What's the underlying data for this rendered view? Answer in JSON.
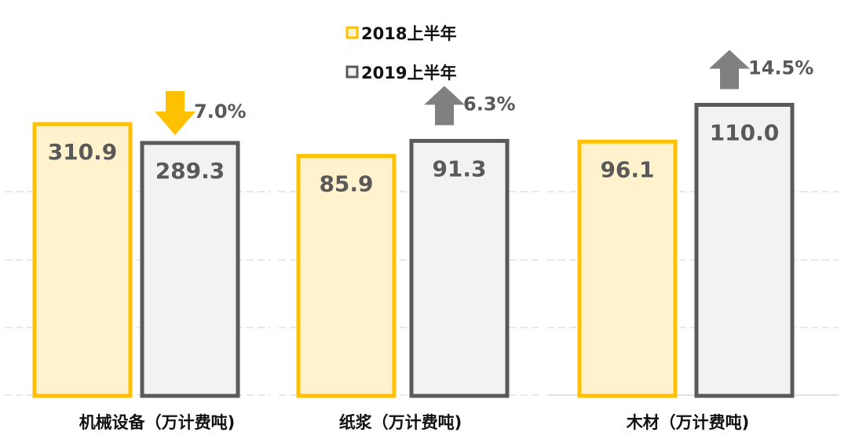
{
  "chart_data": {
    "type": "bar",
    "title": "",
    "legend_position": "top-center",
    "grid": true,
    "series": [
      {
        "name": "2018上半年",
        "color": "#FFC000",
        "fill": "#FFF2CC"
      },
      {
        "name": "2019上半年",
        "color": "#595959",
        "fill": "#F2F2F2"
      }
    ],
    "panels": [
      {
        "category": "机械设备（万计费吨)",
        "values": [
          310.9,
          289.3
        ],
        "labels": [
          "310.9",
          "289.3"
        ],
        "change": "7.0%",
        "direction": "down",
        "arrow_color": "#FFC000",
        "ylim": [
          0,
          345
        ]
      },
      {
        "category": "纸浆（万计费吨)",
        "values": [
          85.9,
          91.3
        ],
        "labels": [
          "85.9",
          "91.3"
        ],
        "change": "6.3%",
        "direction": "up",
        "arrow_color": "#808080",
        "ylim": [
          0,
          108
        ]
      },
      {
        "category": "木材（万计费吨)",
        "values": [
          96.1,
          110.0
        ],
        "labels": [
          "96.1",
          "110.0"
        ],
        "change": "14.5%",
        "direction": "up",
        "arrow_color": "#808080",
        "ylim": [
          0,
          114
        ]
      }
    ]
  }
}
